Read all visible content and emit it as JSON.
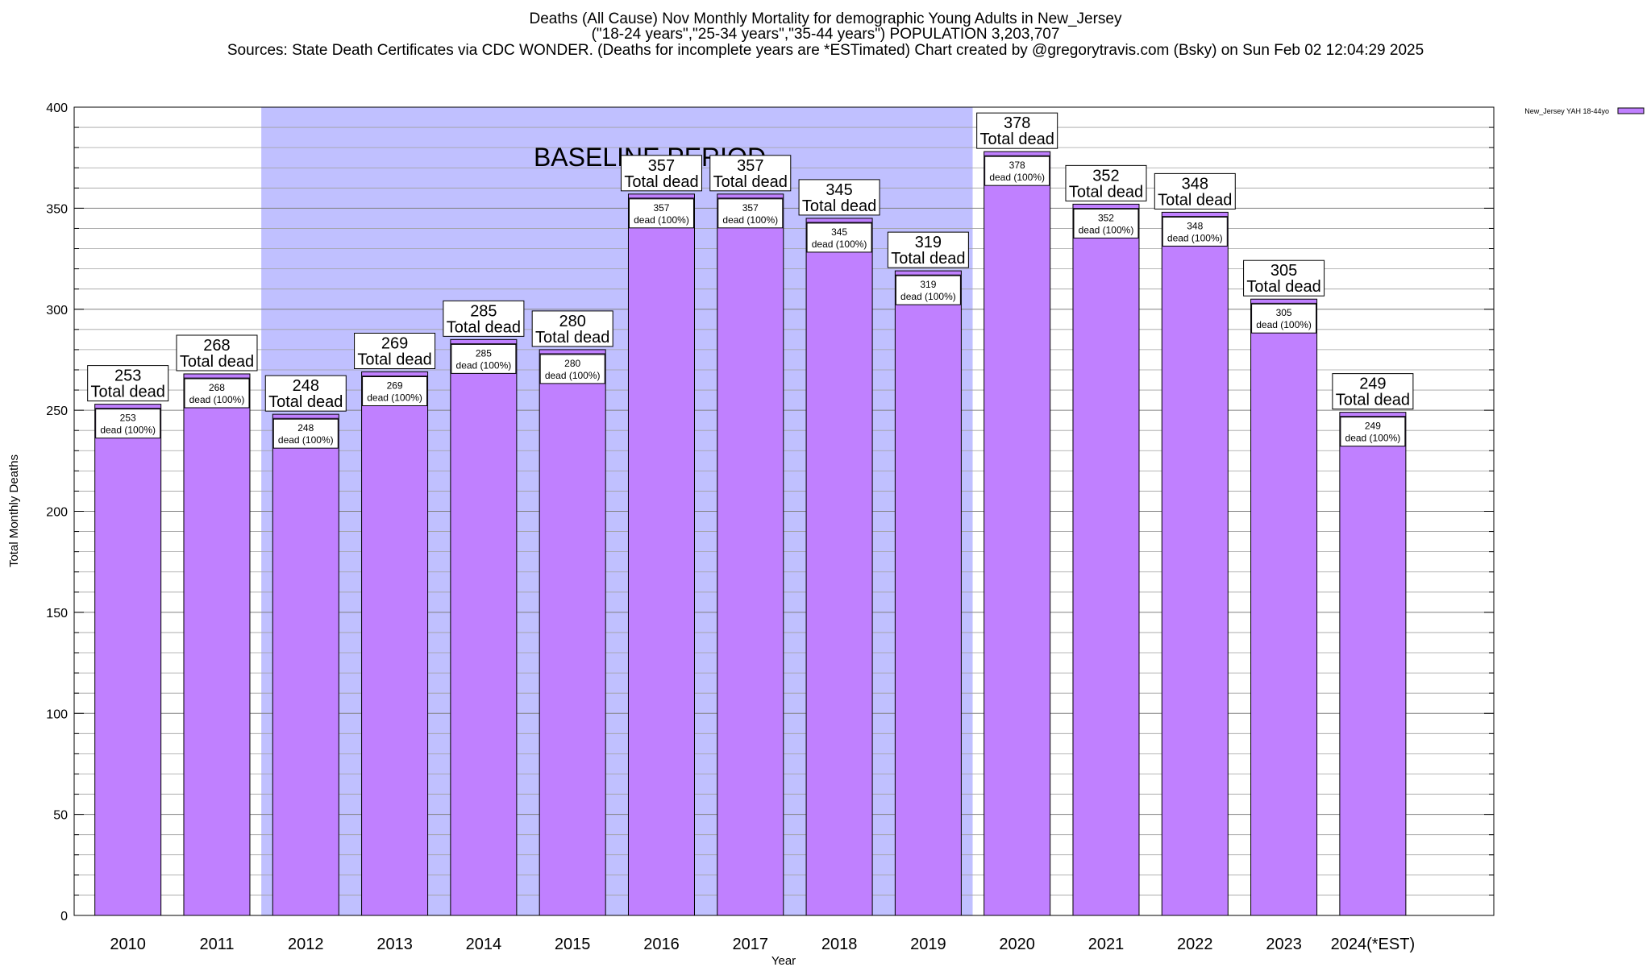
{
  "header": {
    "title_line1": "Deaths (All Cause) Nov Monthly Mortality for demographic Young Adults in New_Jersey",
    "title_line2": "(\"18-24 years\",\"25-34 years\",\"35-44 years\") POPULATION 3,203,707",
    "title_line3": "Sources: State Death Certificates via CDC WONDER. (Deaths for incomplete years are *ESTimated)                Chart created by @gregorytravis.com (Bsky) on Sun Feb 02 12:04:29 2025"
  },
  "colors": {
    "bar": "#c080ff",
    "baseline": "#c0c0ff",
    "grid": "#a0a0a0"
  },
  "chart_data": {
    "type": "bar",
    "xlabel": "Year",
    "ylabel": "Total Monthly Deaths",
    "ylim": [
      0,
      400
    ],
    "yticks": [
      0,
      50,
      100,
      150,
      200,
      250,
      300,
      350,
      400
    ],
    "grid": true,
    "legend": {
      "position": "top-right",
      "label": "New_Jersey YAH 18-44yo"
    },
    "categories": [
      "2010",
      "2011",
      "2012",
      "2013",
      "2014",
      "2015",
      "2016",
      "2017",
      "2018",
      "2019",
      "2020",
      "2021",
      "2022",
      "2023",
      "2024(*EST)"
    ],
    "series": [
      {
        "name": "New_Jersey YAH 18-44yo",
        "values": [
          253,
          268,
          248,
          269,
          285,
          280,
          357,
          357,
          345,
          319,
          378,
          352,
          348,
          305,
          249
        ]
      }
    ],
    "bar_label_top": "Total dead",
    "bar_label_inner": "dead (100%)",
    "baseline_period": {
      "label": "BASELINE PERIOD",
      "from": "2012",
      "to": "2019"
    }
  }
}
